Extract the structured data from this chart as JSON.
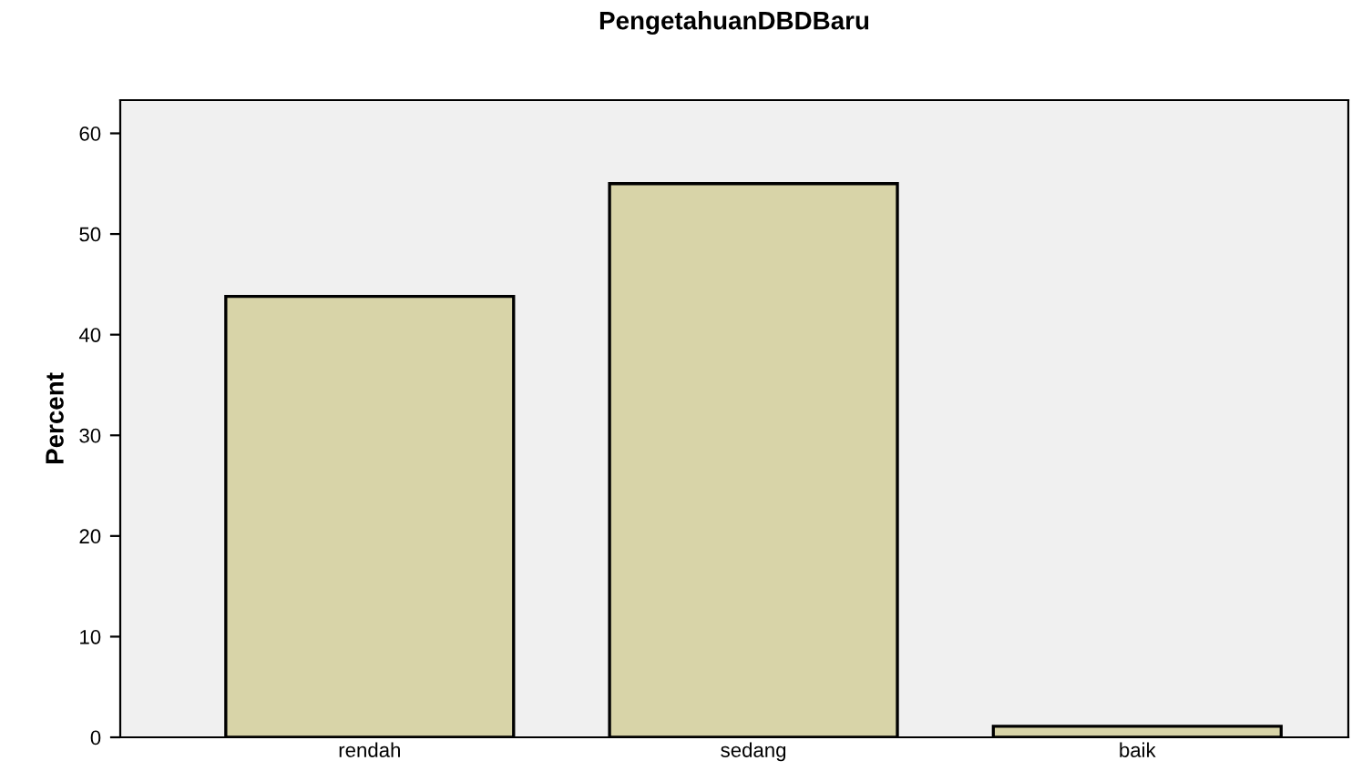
{
  "chart_data": {
    "type": "bar",
    "title": "PengetahuanDBDBaru",
    "ylabel": "Percent",
    "categories": [
      "rendah",
      "sedang",
      "baik"
    ],
    "values": [
      43.8,
      55.0,
      1.1
    ],
    "color": "#d8d4a8",
    "ylim": [
      0,
      63.3
    ],
    "yticks": [
      0,
      10,
      20,
      30,
      40,
      50,
      60
    ],
    "grid": false,
    "legend": false
  }
}
